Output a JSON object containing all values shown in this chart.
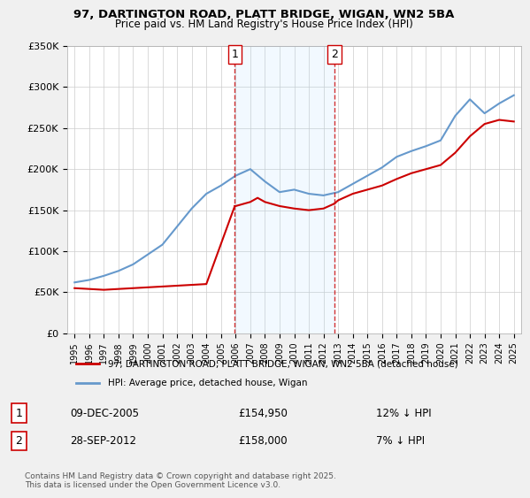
{
  "title1": "97, DARTINGTON ROAD, PLATT BRIDGE, WIGAN, WN2 5BA",
  "title2": "Price paid vs. HM Land Registry's House Price Index (HPI)",
  "legend_line1": "97, DARTINGTON ROAD, PLATT BRIDGE, WIGAN, WN2 5BA (detached house)",
  "legend_line2": "HPI: Average price, detached house, Wigan",
  "footer": "Contains HM Land Registry data © Crown copyright and database right 2025.\nThis data is licensed under the Open Government Licence v3.0.",
  "transactions": [
    {
      "label": "1",
      "date": "09-DEC-2005",
      "price": 154950,
      "pct": "12%",
      "direction": "↓",
      "x_year": 2005.94
    },
    {
      "label": "2",
      "date": "28-SEP-2012",
      "price": 158000,
      "pct": "7%",
      "direction": "↓",
      "x_year": 2012.75
    }
  ],
  "transaction_table": [
    {
      "num": "1",
      "date": "09-DEC-2005",
      "price": "£154,950",
      "rel": "12% ↓ HPI"
    },
    {
      "num": "2",
      "date": "28-SEP-2012",
      "price": "£158,000",
      "rel": "7% ↓ HPI"
    }
  ],
  "ylim": [
    0,
    350000
  ],
  "xlim": [
    1994.5,
    2025.5
  ],
  "background_color": "#f0f0f0",
  "plot_bg_color": "#ffffff",
  "red_color": "#cc0000",
  "blue_color": "#6699cc",
  "hpi_years": [
    1995,
    1996,
    1997,
    1998,
    1999,
    2000,
    2001,
    2002,
    2003,
    2004,
    2005,
    2006,
    2007,
    2008,
    2009,
    2010,
    2011,
    2012,
    2013,
    2014,
    2015,
    2016,
    2017,
    2018,
    2019,
    2020,
    2021,
    2022,
    2023,
    2024,
    2025
  ],
  "hpi_values": [
    62000,
    65000,
    70000,
    76000,
    84000,
    96000,
    108000,
    130000,
    152000,
    170000,
    180000,
    192000,
    200000,
    185000,
    172000,
    175000,
    170000,
    168000,
    172000,
    182000,
    192000,
    202000,
    215000,
    222000,
    228000,
    235000,
    265000,
    285000,
    268000,
    280000,
    290000
  ],
  "property_segments": [
    {
      "years": [
        1995,
        1996,
        1997,
        1998,
        1999,
        2000,
        2001,
        2002,
        2003,
        2004,
        2005.94
      ],
      "values": [
        55000,
        54000,
        53000,
        54000,
        55000,
        56000,
        57000,
        58000,
        59000,
        60000,
        154950
      ]
    },
    {
      "years": [
        2005.94,
        2006,
        2007,
        2007.5,
        2008,
        2009,
        2010,
        2011,
        2012,
        2012.75
      ],
      "values": [
        154950,
        155000,
        160000,
        165000,
        160000,
        155000,
        152000,
        150000,
        152000,
        158000
      ]
    },
    {
      "years": [
        2012.75,
        2013,
        2014,
        2015,
        2016,
        2017,
        2018,
        2019,
        2020,
        2021,
        2022,
        2023,
        2024,
        2025
      ],
      "values": [
        158000,
        162000,
        170000,
        175000,
        180000,
        188000,
        195000,
        200000,
        205000,
        220000,
        240000,
        255000,
        260000,
        258000
      ]
    }
  ]
}
